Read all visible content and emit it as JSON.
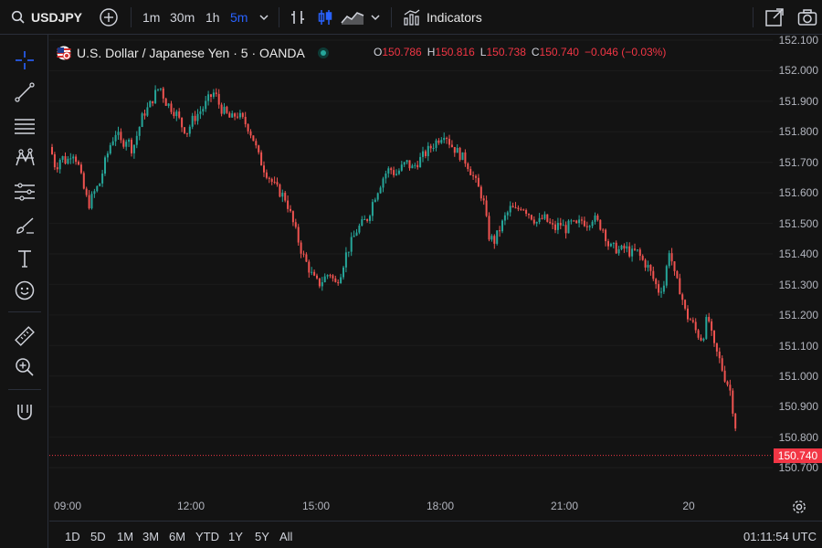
{
  "toolbar": {
    "symbol": "USDJPY",
    "intervals": [
      "1m",
      "30m",
      "1h",
      "5m"
    ],
    "active_interval": "5m",
    "indicators_label": "Indicators"
  },
  "legend": {
    "title": "U.S. Dollar / Japanese Yen · 5 · OANDA",
    "open_key": "O",
    "open": "150.786",
    "high_key": "H",
    "high": "150.816",
    "low_key": "L",
    "low": "150.738",
    "close_key": "C",
    "close": "150.740",
    "change": "−0.046 (−0.03%)"
  },
  "price_axis": {
    "labels": [
      "152.100",
      "152.000",
      "151.900",
      "151.800",
      "151.700",
      "151.600",
      "151.500",
      "151.400",
      "151.300",
      "151.200",
      "151.100",
      "151.000",
      "150.900",
      "150.800",
      "150.700"
    ],
    "last_price": "150.740"
  },
  "time_axis": {
    "labels": [
      "09:00",
      "12:00",
      "15:00",
      "18:00",
      "21:00",
      "20"
    ]
  },
  "bottom_bar": {
    "ranges": [
      "1D",
      "5D",
      "1M",
      "3M",
      "6M",
      "YTD",
      "1Y",
      "5Y",
      "All"
    ],
    "clock": "01:11:54 UTC"
  },
  "colors": {
    "up": "#26a69a",
    "down": "#ef5350",
    "background": "#131313",
    "accent": "#2962ff"
  },
  "left_tools": [
    "crosshair-icon",
    "trend-line-icon",
    "fib-lines-icon",
    "pattern-icon",
    "measure-lines-icon",
    "brush-icon",
    "text-tool-icon",
    "emoji-icon",
    "ruler-icon",
    "zoom-in-icon",
    "magnet-icon"
  ],
  "chart_data": {
    "type": "candlestick",
    "y_range": [
      150.67,
      152.11
    ],
    "path_points": [
      [
        0,
        151.75
      ],
      [
        6,
        151.68
      ],
      [
        12,
        151.72
      ],
      [
        18,
        151.7
      ],
      [
        24,
        151.74
      ],
      [
        30,
        151.7
      ],
      [
        36,
        151.62
      ],
      [
        42,
        151.56
      ],
      [
        48,
        151.6
      ],
      [
        54,
        151.63
      ],
      [
        60,
        151.7
      ],
      [
        66,
        151.76
      ],
      [
        72,
        151.8
      ],
      [
        78,
        151.76
      ],
      [
        84,
        151.78
      ],
      [
        90,
        151.74
      ],
      [
        96,
        151.8
      ],
      [
        102,
        151.86
      ],
      [
        108,
        151.88
      ],
      [
        114,
        151.92
      ],
      [
        120,
        151.95
      ],
      [
        126,
        151.9
      ],
      [
        132,
        151.88
      ],
      [
        138,
        151.86
      ],
      [
        144,
        151.82
      ],
      [
        150,
        151.8
      ],
      [
        156,
        151.84
      ],
      [
        162,
        151.86
      ],
      [
        168,
        151.88
      ],
      [
        174,
        151.91
      ],
      [
        180,
        151.93
      ],
      [
        186,
        151.88
      ],
      [
        192,
        151.86
      ],
      [
        198,
        151.84
      ],
      [
        204,
        151.86
      ],
      [
        210,
        151.84
      ],
      [
        216,
        151.82
      ],
      [
        222,
        151.78
      ],
      [
        228,
        151.72
      ],
      [
        234,
        151.68
      ],
      [
        240,
        151.65
      ],
      [
        246,
        151.62
      ],
      [
        252,
        151.6
      ],
      [
        258,
        151.58
      ],
      [
        264,
        151.52
      ],
      [
        270,
        151.46
      ],
      [
        276,
        151.4
      ],
      [
        282,
        151.36
      ],
      [
        288,
        151.32
      ],
      [
        294,
        151.3
      ],
      [
        300,
        151.32
      ],
      [
        306,
        151.34
      ],
      [
        312,
        151.3
      ],
      [
        318,
        151.34
      ],
      [
        324,
        151.4
      ],
      [
        330,
        151.44
      ],
      [
        336,
        151.48
      ],
      [
        342,
        151.5
      ],
      [
        348,
        151.52
      ],
      [
        354,
        151.58
      ],
      [
        360,
        151.62
      ],
      [
        366,
        151.66
      ],
      [
        372,
        151.68
      ],
      [
        378,
        151.66
      ],
      [
        384,
        151.68
      ],
      [
        390,
        151.7
      ],
      [
        396,
        151.68
      ],
      [
        402,
        151.7
      ],
      [
        408,
        151.72
      ],
      [
        414,
        151.74
      ],
      [
        420,
        151.76
      ],
      [
        426,
        151.78
      ],
      [
        432,
        151.8
      ],
      [
        438,
        151.76
      ],
      [
        444,
        151.74
      ],
      [
        450,
        151.72
      ],
      [
        456,
        151.7
      ],
      [
        462,
        151.66
      ],
      [
        468,
        151.62
      ],
      [
        474,
        151.58
      ],
      [
        480,
        151.46
      ],
      [
        486,
        151.44
      ],
      [
        492,
        151.48
      ],
      [
        498,
        151.52
      ],
      [
        504,
        151.55
      ],
      [
        510,
        151.54
      ],
      [
        516,
        151.56
      ],
      [
        522,
        151.54
      ],
      [
        528,
        151.52
      ],
      [
        534,
        151.5
      ],
      [
        540,
        151.52
      ],
      [
        546,
        151.5
      ],
      [
        552,
        151.48
      ],
      [
        558,
        151.5
      ],
      [
        564,
        151.48
      ],
      [
        570,
        151.5
      ],
      [
        576,
        151.49
      ],
      [
        582,
        151.51
      ],
      [
        588,
        151.5
      ],
      [
        594,
        151.52
      ],
      [
        600,
        151.5
      ],
      [
        606,
        151.48
      ],
      [
        612,
        151.42
      ],
      [
        618,
        151.42
      ],
      [
        624,
        151.41
      ],
      [
        630,
        151.42
      ],
      [
        636,
        151.4
      ],
      [
        642,
        151.41
      ],
      [
        648,
        151.38
      ],
      [
        654,
        151.36
      ],
      [
        660,
        151.32
      ],
      [
        666,
        151.28
      ],
      [
        672,
        151.3
      ],
      [
        678,
        151.42
      ],
      [
        684,
        151.32
      ],
      [
        690,
        151.28
      ],
      [
        696,
        151.2
      ],
      [
        702,
        151.18
      ],
      [
        708,
        151.14
      ],
      [
        714,
        151.12
      ],
      [
        720,
        151.2
      ],
      [
        726,
        151.1
      ],
      [
        732,
        151.06
      ],
      [
        738,
        151.0
      ],
      [
        744,
        150.96
      ],
      [
        750,
        150.84
      ],
      [
        756,
        150.74
      ]
    ]
  }
}
